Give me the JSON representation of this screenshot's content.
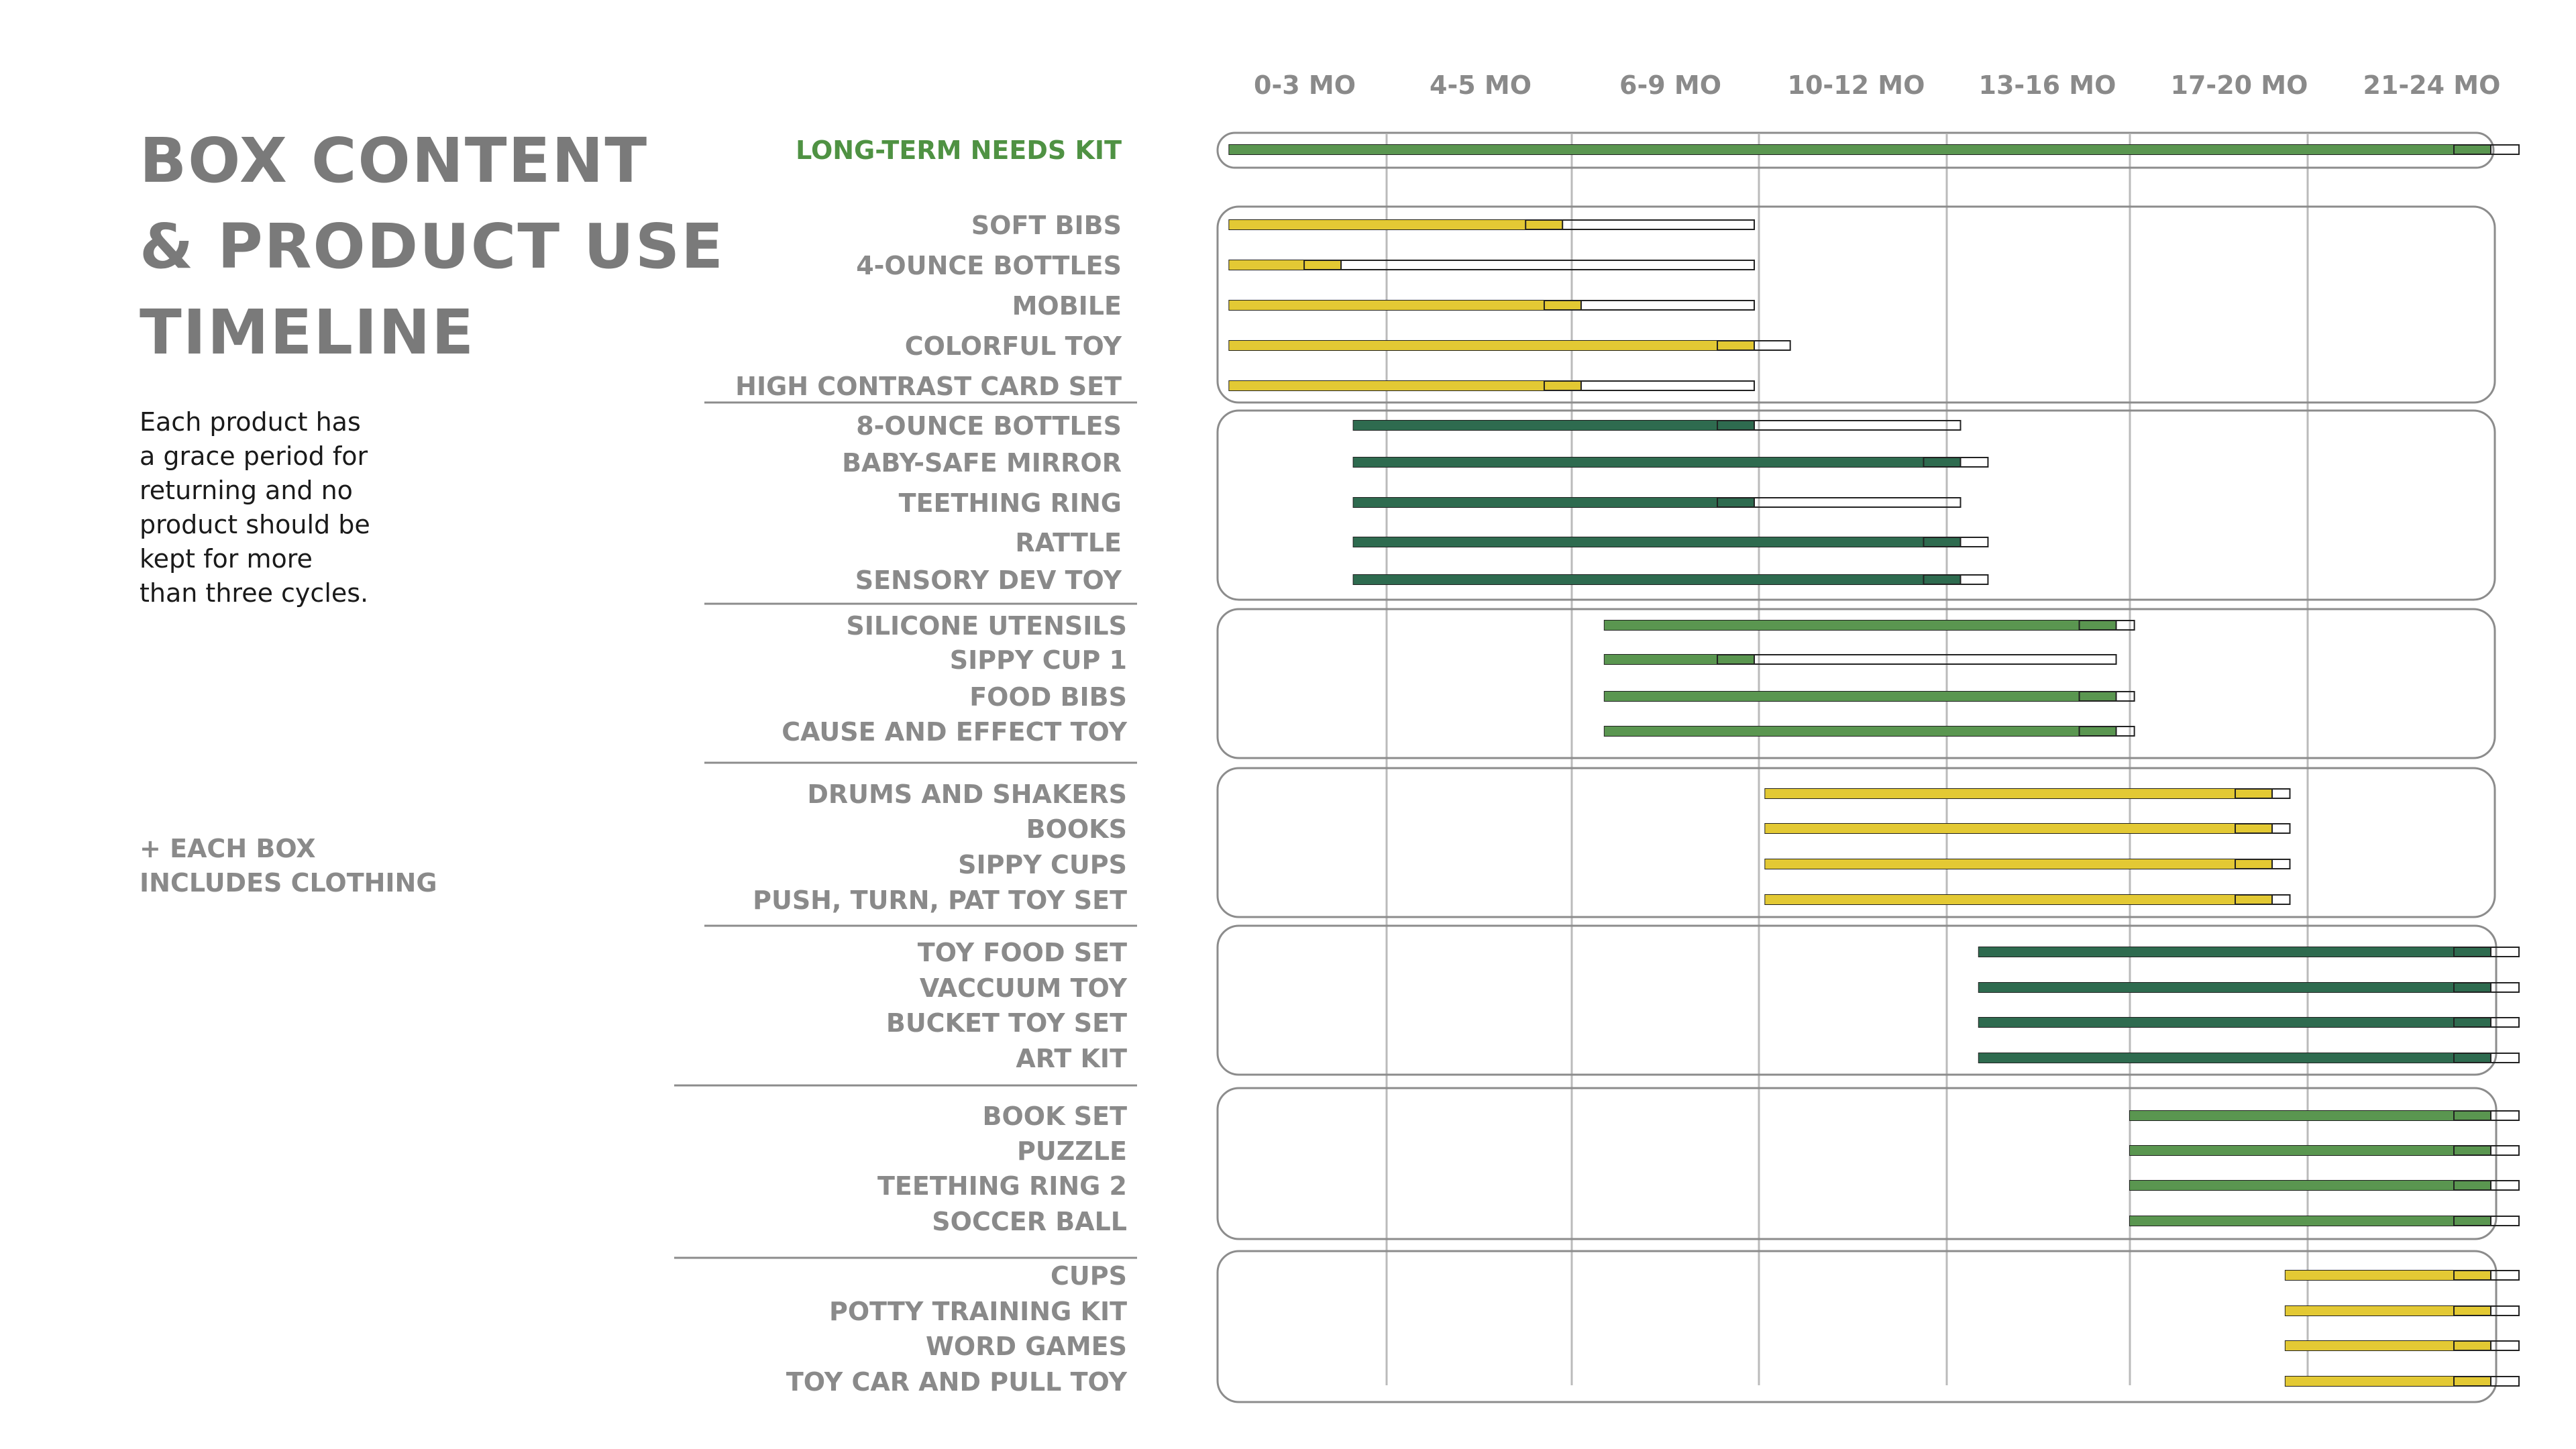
{
  "title": {
    "lines": [
      "BOX CONTENT",
      "& PRODUCT USE",
      "TIMELINE"
    ]
  },
  "description": {
    "lines": [
      "Each product has",
      "a grace period for",
      "returning and no",
      "product should be",
      "kept for more",
      "than three cycles."
    ]
  },
  "note": {
    "lines": [
      "+ EACH BOX",
      "INCLUDES CLOTHING"
    ]
  },
  "colors": {
    "yellow": "#e3c934",
    "dark_green": "#2e6b4f",
    "mid_green": "#5a9650",
    "label_gray": "#8a8a8a",
    "title_gray": "#7a7a7a",
    "kit_label": "#4f9243",
    "grid": "#bbbbbb",
    "group_border": "#8c8c8c"
  },
  "chart_data": {
    "type": "timeline",
    "x_axis": {
      "periods": [
        "0-3 MO",
        "4-5 MO",
        "6-9 MO",
        "10-12 MO",
        "13-16 MO",
        "17-20 MO",
        "21-24 MO"
      ],
      "unit": "months",
      "range": [
        0,
        24
      ]
    },
    "groups": [
      {
        "color": "mid_green",
        "items": [
          {
            "label": "LONG-TERM NEEDS KIT",
            "use": [
              0.2,
              23.6
            ],
            "grace": 24.3,
            "highlight": true
          }
        ]
      },
      {
        "color": "yellow",
        "items": [
          {
            "label": "SOFT BIBS",
            "use": [
              0.2,
              5.9
            ],
            "grace": 9.9
          },
          {
            "label": "4-OUNCE BOTTLES",
            "use": [
              0.2,
              2.9
            ],
            "grace": 9.9
          },
          {
            "label": "MOBILE",
            "use": [
              0.2,
              6.2
            ],
            "grace": 9.9
          },
          {
            "label": "COLORFUL TOY",
            "use": [
              0.2,
              9.9
            ],
            "grace": 10.5
          },
          {
            "label": "HIGH CONTRAST CARD SET",
            "use": [
              0.2,
              6.2
            ],
            "grace": 9.9
          }
        ]
      },
      {
        "color": "dark_green",
        "items": [
          {
            "label": "8-OUNCE BOTTLES",
            "use": [
              3.2,
              9.9
            ],
            "grace": 13.3
          },
          {
            "label": "BABY-SAFE MIRROR",
            "use": [
              3.2,
              13.3
            ],
            "grace": 13.9
          },
          {
            "label": "TEETHING RING",
            "use": [
              3.2,
              9.9
            ],
            "grace": 13.3
          },
          {
            "label": "RATTLE",
            "use": [
              3.2,
              13.3
            ],
            "grace": 13.9
          },
          {
            "label": "SENSORY DEV TOY",
            "use": [
              3.2,
              13.3
            ],
            "grace": 13.9
          }
        ]
      },
      {
        "color": "mid_green",
        "items": [
          {
            "label": "SILICONE UTENSILS",
            "use": [
              6.7,
              16.7
            ],
            "grace": 17.1
          },
          {
            "label": "SIPPY CUP 1",
            "use": [
              6.7,
              9.9
            ],
            "grace": 16.7
          },
          {
            "label": "FOOD BIBS",
            "use": [
              6.7,
              16.7
            ],
            "grace": 17.1
          },
          {
            "label": "CAUSE AND EFFECT TOY",
            "use": [
              6.7,
              16.7
            ],
            "grace": 17.1
          }
        ]
      },
      {
        "color": "yellow",
        "items": [
          {
            "label": "DRUMS AND SHAKERS",
            "use": [
              10.1,
              20.2
            ],
            "grace": 20.6
          },
          {
            "label": "BOOKS",
            "use": [
              10.1,
              20.2
            ],
            "grace": 20.6
          },
          {
            "label": "SIPPY CUPS",
            "use": [
              10.1,
              20.2
            ],
            "grace": 20.6
          },
          {
            "label": "PUSH, TURN, PAT TOY SET",
            "use": [
              10.1,
              20.2
            ],
            "grace": 20.6
          }
        ]
      },
      {
        "color": "dark_green",
        "items": [
          {
            "label": "TOY FOOD SET",
            "use": [
              13.7,
              23.6
            ],
            "grace": 24.3
          },
          {
            "label": "VACCUUM TOY",
            "use": [
              13.7,
              23.6
            ],
            "grace": 24.3
          },
          {
            "label": "BUCKET TOY SET",
            "use": [
              13.7,
              23.6
            ],
            "grace": 24.3
          },
          {
            "label": "ART KIT",
            "use": [
              13.7,
              23.6
            ],
            "grace": 24.3
          }
        ]
      },
      {
        "color": "mid_green",
        "items": [
          {
            "label": "BOOK SET",
            "use": [
              17.0,
              23.6
            ],
            "grace": 24.3
          },
          {
            "label": "PUZZLE",
            "use": [
              17.0,
              23.6
            ],
            "grace": 24.3
          },
          {
            "label": "TEETHING RING 2",
            "use": [
              17.0,
              23.6
            ],
            "grace": 24.3
          },
          {
            "label": "SOCCER BALL",
            "use": [
              17.0,
              23.6
            ],
            "grace": 24.3
          }
        ]
      },
      {
        "color": "yellow",
        "items": [
          {
            "label": "CUPS",
            "use": [
              20.5,
              23.6
            ],
            "grace": 24.3
          },
          {
            "label": "POTTY TRAINING KIT",
            "use": [
              20.5,
              23.6
            ],
            "grace": 24.3
          },
          {
            "label": "WORD GAMES",
            "use": [
              20.5,
              23.6
            ],
            "grace": 24.3
          },
          {
            "label": "TOY CAR AND PULL TOY",
            "use": [
              20.5,
              23.6
            ],
            "grace": 24.3
          }
        ]
      }
    ]
  }
}
